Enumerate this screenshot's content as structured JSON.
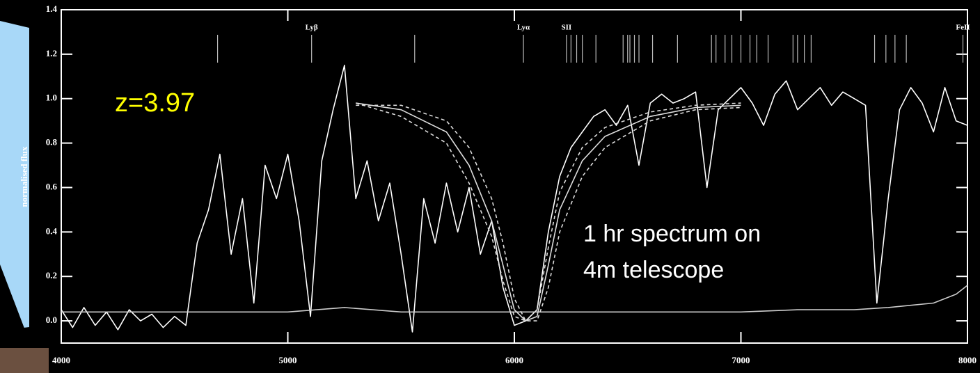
{
  "chart_data": {
    "type": "line",
    "y_label": "normalised flux",
    "xlim": [
      4000,
      8000
    ],
    "ylim": [
      -0.1,
      1.4
    ],
    "xticks": [
      4000,
      5000,
      6000,
      7000,
      8000
    ],
    "yticks": [
      {
        "value": 0,
        "label": "0.0"
      },
      0.2,
      0.4,
      0.6,
      0.8,
      {
        "value": 1,
        "label": "1.0"
      },
      1.2,
      1.4
    ],
    "annotations": [
      {
        "text": "z=3.97",
        "color": "#ffff00"
      },
      {
        "lines": [
          "1 hr spectrum on",
          "4m telescope"
        ],
        "color": "#ffffff"
      }
    ],
    "line_labels": [
      {
        "text": "Lyβ",
        "x": 5105
      },
      {
        "text": "Lyα",
        "x": 6040
      },
      {
        "text": "SII",
        "x": 6230
      },
      {
        "text": "FeII",
        "x": 7980
      }
    ],
    "line_markers": [
      4690,
      5105,
      5560,
      6040,
      6230,
      6250,
      6275,
      6300,
      6360,
      6480,
      6500,
      6510,
      6530,
      6550,
      6610,
      6720,
      6870,
      6890,
      6930,
      6960,
      7000,
      7040,
      7070,
      7120,
      7230,
      7250,
      7280,
      7310,
      7590,
      7640,
      7680,
      7730,
      7980
    ],
    "series": [
      {
        "color": "#ffffff",
        "dash": false,
        "x": [
          4000,
          4050,
          4100,
          4150,
          4200,
          4250,
          4300,
          4350,
          4400,
          4450,
          4500,
          4550,
          4600,
          4650,
          4700,
          4750,
          4800,
          4850,
          4900,
          4950,
          5000,
          5050,
          5100,
          5150,
          5200,
          5250,
          5300,
          5350,
          5400,
          5450,
          5500,
          5550,
          5600,
          5650,
          5700,
          5750,
          5800,
          5850,
          5900,
          5950,
          6000,
          6050,
          6100,
          6150,
          6200,
          6250,
          6300,
          6350,
          6400,
          6450,
          6500,
          6550,
          6600,
          6650,
          6700,
          6750,
          6800,
          6850,
          6900,
          6950,
          7000,
          7050,
          7100,
          7150,
          7200,
          7250,
          7300,
          7350,
          7400,
          7450,
          7500,
          7550,
          7600,
          7650,
          7700,
          7750,
          7800,
          7850,
          7900,
          7950,
          8000
        ],
        "values": [
          0.05,
          -0.03,
          0.06,
          -0.02,
          0.04,
          -0.04,
          0.05,
          0.0,
          0.03,
          -0.03,
          0.02,
          -0.02,
          0.35,
          0.5,
          0.75,
          0.3,
          0.55,
          0.08,
          0.7,
          0.55,
          0.75,
          0.45,
          0.02,
          0.72,
          0.95,
          1.15,
          0.55,
          0.72,
          0.45,
          0.62,
          0.3,
          -0.05,
          0.55,
          0.35,
          0.62,
          0.4,
          0.6,
          0.3,
          0.45,
          0.15,
          -0.02,
          0.0,
          0.05,
          0.4,
          0.65,
          0.78,
          0.85,
          0.92,
          0.95,
          0.88,
          0.97,
          0.7,
          0.98,
          1.02,
          0.98,
          1.0,
          1.03,
          0.6,
          0.95,
          1.0,
          1.05,
          0.98,
          0.88,
          1.02,
          1.08,
          0.95,
          1.0,
          1.05,
          0.97,
          1.03,
          1.0,
          0.97,
          0.08,
          0.55,
          0.95,
          1.05,
          0.98,
          0.85,
          1.05,
          0.9,
          0.88
        ]
      },
      {
        "color": "#cccccc",
        "dash": false,
        "x": [
          4000,
          4500,
          5000,
          5250,
          5500,
          5750,
          6000,
          6250,
          6500,
          6750,
          7000,
          7250,
          7500,
          7650,
          7750,
          7850,
          7950,
          8000
        ],
        "values": [
          0.04,
          0.04,
          0.04,
          0.06,
          0.04,
          0.04,
          0.04,
          0.04,
          0.04,
          0.04,
          0.04,
          0.05,
          0.05,
          0.06,
          0.07,
          0.08,
          0.12,
          0.16
        ]
      },
      {
        "color": "#dddddd",
        "dash": false,
        "x": [
          5300,
          5500,
          5700,
          5800,
          5900,
          5950,
          6000,
          6050,
          6100,
          6150,
          6200,
          6300,
          6400,
          6600,
          6800,
          7000
        ],
        "values": [
          0.98,
          0.95,
          0.85,
          0.7,
          0.45,
          0.25,
          0.05,
          0.0,
          0.02,
          0.25,
          0.5,
          0.72,
          0.83,
          0.92,
          0.96,
          0.97
        ]
      },
      {
        "color": "#dddddd",
        "dash": true,
        "x": [
          5300,
          5500,
          5700,
          5800,
          5900,
          5950,
          6000,
          6050,
          6100,
          6150,
          6200,
          6300,
          6400,
          6600,
          6800,
          7000
        ],
        "values": [
          0.97,
          0.97,
          0.9,
          0.78,
          0.55,
          0.35,
          0.1,
          0.0,
          0.0,
          0.15,
          0.4,
          0.65,
          0.78,
          0.9,
          0.95,
          0.96
        ]
      },
      {
        "color": "#dddddd",
        "dash": true,
        "x": [
          5300,
          5500,
          5700,
          5800,
          5900,
          5950,
          6000,
          6050,
          6100,
          6150,
          6200,
          6300,
          6400,
          6600,
          6800,
          7000
        ],
        "values": [
          0.98,
          0.92,
          0.8,
          0.62,
          0.38,
          0.18,
          0.02,
          0.0,
          0.05,
          0.33,
          0.58,
          0.78,
          0.87,
          0.94,
          0.97,
          0.98
        ]
      }
    ]
  }
}
